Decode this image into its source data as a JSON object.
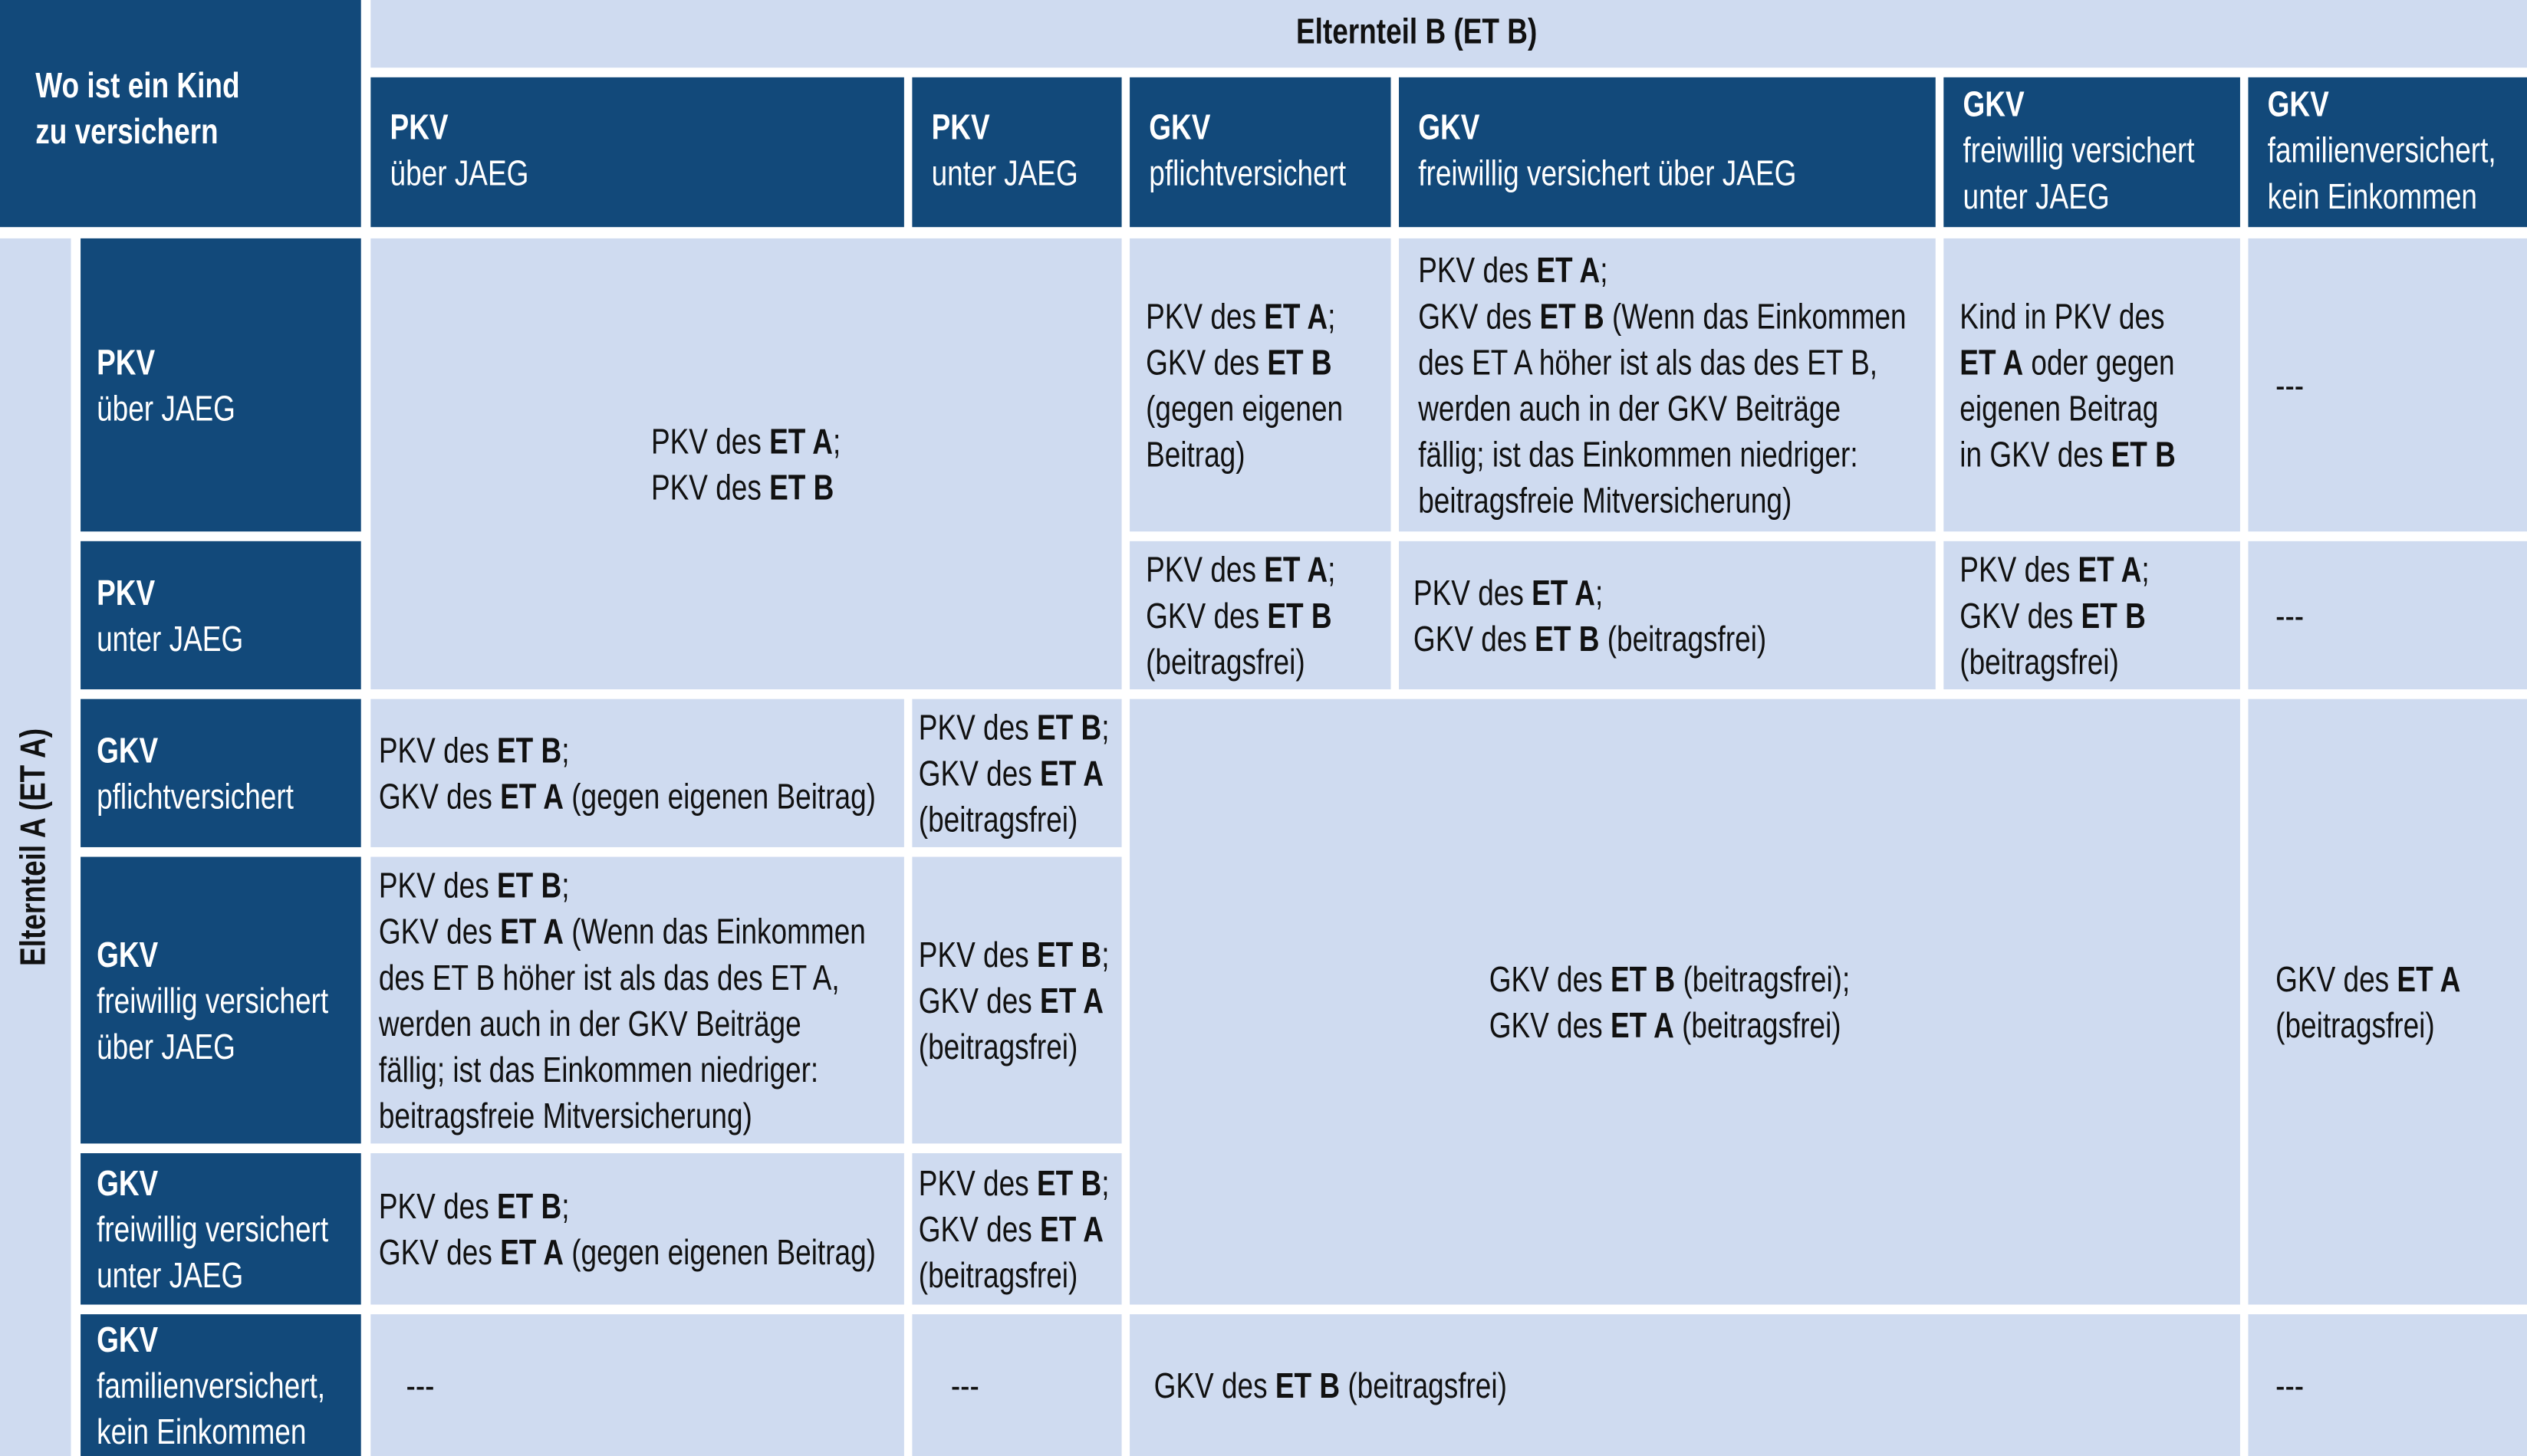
{
  "corner": {
    "lines": [
      [
        {
          "text": "Wo ist ein Kind",
          "bold": true
        }
      ],
      [
        {
          "text": "zu versichern",
          "bold": true
        }
      ]
    ]
  },
  "header_b": "Elternteil B (ET B)",
  "header_a": "Elternteil A (ET A)",
  "columns": [
    {
      "lines": [
        [
          {
            "text": "PKV",
            "bold": true
          }
        ],
        [
          "über JAEG"
        ]
      ]
    },
    {
      "lines": [
        [
          {
            "text": "PKV",
            "bold": true
          }
        ],
        [
          "unter JAEG"
        ]
      ]
    },
    {
      "lines": [
        [
          {
            "text": "GKV",
            "bold": true
          }
        ],
        [
          "pflichtversichert"
        ]
      ]
    },
    {
      "lines": [
        [
          {
            "text": "GKV",
            "bold": true
          }
        ],
        [
          "freiwillig versichert über JAEG"
        ]
      ]
    },
    {
      "lines": [
        [
          {
            "text": "GKV",
            "bold": true
          }
        ],
        [
          "freiwillig versichert"
        ],
        [
          "unter JAEG"
        ]
      ]
    },
    {
      "lines": [
        [
          {
            "text": "GKV",
            "bold": true
          }
        ],
        [
          "familienversichert,"
        ],
        [
          "kein Einkommen"
        ]
      ]
    }
  ],
  "rows": [
    {
      "lines": [
        [
          {
            "text": "PKV",
            "bold": true
          }
        ],
        [
          "über JAEG"
        ]
      ]
    },
    {
      "lines": [
        [
          {
            "text": "PKV",
            "bold": true
          }
        ],
        [
          "unter JAEG"
        ]
      ]
    },
    {
      "lines": [
        [
          {
            "text": "GKV",
            "bold": true
          }
        ],
        [
          "pflichtversichert"
        ]
      ]
    },
    {
      "lines": [
        [
          {
            "text": "GKV",
            "bold": true
          }
        ],
        [
          "freiwillig versichert"
        ],
        [
          "über JAEG"
        ]
      ]
    },
    {
      "lines": [
        [
          {
            "text": "GKV",
            "bold": true
          }
        ],
        [
          "freiwillig versichert"
        ],
        [
          "unter JAEG"
        ]
      ]
    },
    {
      "lines": [
        [
          {
            "text": "GKV",
            "bold": true
          }
        ],
        [
          "familienversichert,"
        ],
        [
          "kein Einkommen"
        ]
      ]
    }
  ],
  "cells": [
    {
      "lines": [
        [
          "PKV des ",
          {
            "text": "ET A",
            "bold": true
          },
          ";"
        ],
        [
          "PKV des ",
          {
            "text": "ET B",
            "bold": true
          }
        ]
      ]
    },
    {
      "lines": [
        [
          "PKV des ",
          {
            "text": "ET A",
            "bold": true
          },
          ";"
        ],
        [
          "GKV des ",
          {
            "text": "ET B",
            "bold": true
          }
        ],
        [
          "(gegen eigenen"
        ],
        [
          "Beitrag)"
        ]
      ]
    },
    {
      "lines": [
        [
          "PKV des ",
          {
            "text": "ET A",
            "bold": true
          },
          ";"
        ],
        [
          "GKV des ",
          {
            "text": "ET B",
            "bold": true
          },
          " (Wenn das Einkommen"
        ],
        [
          "des ET A höher ist als das des ET B,"
        ],
        [
          "werden auch in der GKV Beiträge"
        ],
        [
          "fällig; ist das Einkommen niedriger:"
        ],
        [
          "beitragsfreie Mitversicherung)"
        ]
      ]
    },
    {
      "lines": [
        [
          "Kind in PKV des"
        ],
        [
          {
            "text": "ET A",
            "bold": true
          },
          " oder gegen"
        ],
        [
          "eigenen Beitrag"
        ],
        [
          "in GKV des ",
          {
            "text": "ET B",
            "bold": true
          }
        ]
      ]
    },
    {
      "lines": [
        [
          "---"
        ]
      ]
    },
    {
      "lines": [
        [
          "PKV des ",
          {
            "text": "ET A",
            "bold": true
          },
          ";"
        ],
        [
          "GKV des ",
          {
            "text": "ET B",
            "bold": true
          }
        ],
        [
          "(beitragsfrei)"
        ]
      ]
    },
    {
      "lines": [
        [
          "PKV des ",
          {
            "text": "ET A",
            "bold": true
          },
          ";"
        ],
        [
          "GKV des ",
          {
            "text": "ET B",
            "bold": true
          },
          " (beitragsfrei)"
        ]
      ]
    },
    {
      "lines": [
        [
          "PKV des ",
          {
            "text": "ET A",
            "bold": true
          },
          ";"
        ],
        [
          "GKV des ",
          {
            "text": "ET B",
            "bold": true
          }
        ],
        [
          "(beitragsfrei)"
        ]
      ]
    },
    {
      "lines": [
        [
          "---"
        ]
      ]
    },
    {
      "lines": [
        [
          "PKV des ",
          {
            "text": "ET B",
            "bold": true
          },
          ";"
        ],
        [
          "GKV des ",
          {
            "text": "ET A",
            "bold": true
          },
          " (gegen eigenen Beitrag)"
        ]
      ]
    },
    {
      "lines": [
        [
          "PKV des ",
          {
            "text": "ET B",
            "bold": true
          },
          ";"
        ],
        [
          "GKV des ",
          {
            "text": "ET A",
            "bold": true
          }
        ],
        [
          "(beitragsfrei)"
        ]
      ]
    },
    {
      "lines": [
        [
          "GKV des ",
          {
            "text": "ET B",
            "bold": true
          },
          " (beitragsfrei);"
        ],
        [
          "GKV des ",
          {
            "text": "ET A",
            "bold": true
          },
          " (beitragsfrei)"
        ]
      ]
    },
    {
      "lines": [
        [
          "GKV des ",
          {
            "text": "ET A",
            "bold": true
          }
        ],
        [
          "(beitragsfrei)"
        ]
      ]
    },
    {
      "lines": [
        [
          "PKV des ",
          {
            "text": "ET B",
            "bold": true
          },
          ";"
        ],
        [
          "GKV des ",
          {
            "text": "ET A",
            "bold": true
          },
          " (Wenn das Einkommen"
        ],
        [
          "des ET B höher ist als das des ET A,"
        ],
        [
          "werden auch in der GKV Beiträge"
        ],
        [
          "fällig; ist das Einkommen niedriger:"
        ],
        [
          "beitragsfreie Mitversicherung)"
        ]
      ]
    },
    {
      "lines": [
        [
          "PKV des ",
          {
            "text": "ET B",
            "bold": true
          },
          ";"
        ],
        [
          "GKV des ",
          {
            "text": "ET A",
            "bold": true
          }
        ],
        [
          "(beitragsfrei)"
        ]
      ]
    },
    {
      "lines": [
        [
          "PKV des ",
          {
            "text": "ET B",
            "bold": true
          },
          ";"
        ],
        [
          "GKV des ",
          {
            "text": "ET A",
            "bold": true
          },
          " (gegen eigenen Beitrag)"
        ]
      ]
    },
    {
      "lines": [
        [
          "PKV des ",
          {
            "text": "ET B",
            "bold": true
          },
          ";"
        ],
        [
          "GKV des ",
          {
            "text": "ET A",
            "bold": true
          }
        ],
        [
          "(beitragsfrei)"
        ]
      ]
    },
    {
      "lines": [
        [
          "---"
        ]
      ]
    },
    {
      "lines": [
        [
          "---"
        ]
      ]
    },
    {
      "lines": [
        [
          "GKV des ",
          {
            "text": "ET B",
            "bold": true
          },
          " (beitragsfrei)"
        ]
      ]
    },
    {
      "lines": [
        [
          "---"
        ]
      ]
    }
  ]
}
